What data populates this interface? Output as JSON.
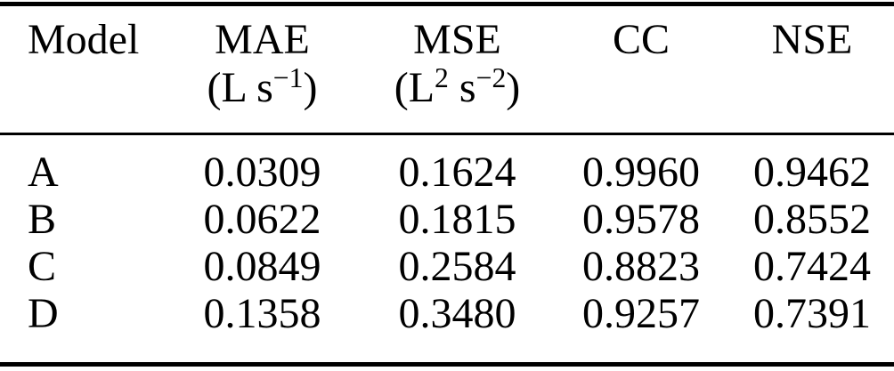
{
  "page": {
    "background": "#ffffff",
    "text_color": "#000000",
    "rule_color": "#000000"
  },
  "table": {
    "columns": [
      {
        "label": "Model"
      },
      {
        "label": "MAE",
        "unit": {
          "base1": "(L s",
          "sup1": "−1",
          "base2": ")"
        }
      },
      {
        "label": "MSE",
        "unit": {
          "base1": "(L",
          "sup1": "2",
          "base2": " s",
          "sup2": "−2",
          "base3": ")"
        }
      },
      {
        "label": "CC"
      },
      {
        "label": "NSE"
      }
    ],
    "rows": [
      {
        "model": "A",
        "mae": "0.0309",
        "mse": "0.1624",
        "cc": "0.9960",
        "nse": "0.9462"
      },
      {
        "model": "B",
        "mae": "0.0622",
        "mse": "0.1815",
        "cc": "0.9578",
        "nse": "0.8552"
      },
      {
        "model": "C",
        "mae": "0.0849",
        "mse": "0.2584",
        "cc": "0.8823",
        "nse": "0.7424"
      },
      {
        "model": "D",
        "mae": "0.1358",
        "mse": "0.3480",
        "cc": "0.9257",
        "nse": "0.7391"
      }
    ]
  }
}
